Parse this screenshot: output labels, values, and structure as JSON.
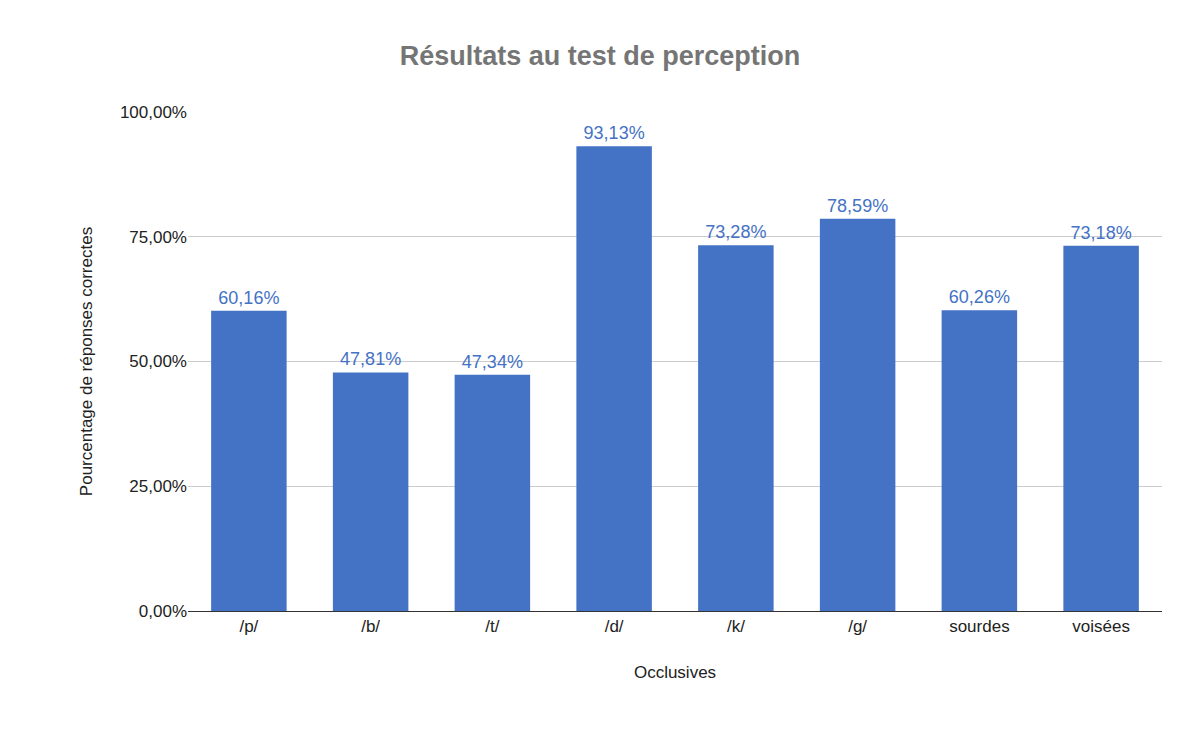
{
  "chart_data": {
    "type": "bar",
    "title": "Résultats au test de perception",
    "x_label": "Occlusives",
    "y_label": "Pourcentage de réponses correctes",
    "categories": [
      "/p/",
      "/b/",
      "/t/",
      "/d/",
      "/k/",
      "/g/",
      "sourdes",
      "voisées"
    ],
    "values": [
      60.16,
      47.81,
      47.34,
      93.13,
      73.28,
      78.59,
      60.26,
      73.18
    ],
    "value_labels": [
      "60,16%",
      "47,81%",
      "47,34%",
      "93,13%",
      "73,28%",
      "78,59%",
      "60,26%",
      "73,18%"
    ],
    "data_labels": true,
    "color": "#4472c4",
    "ylim": [
      0,
      100
    ],
    "yticks": [
      {
        "value": 0,
        "label": "0,00%"
      },
      {
        "value": 25,
        "label": "25,00%"
      },
      {
        "value": 50,
        "label": "50,00%"
      },
      {
        "value": 75,
        "label": "75,00%"
      },
      {
        "value": 100,
        "label": "100,00%"
      }
    ],
    "grid": true
  }
}
